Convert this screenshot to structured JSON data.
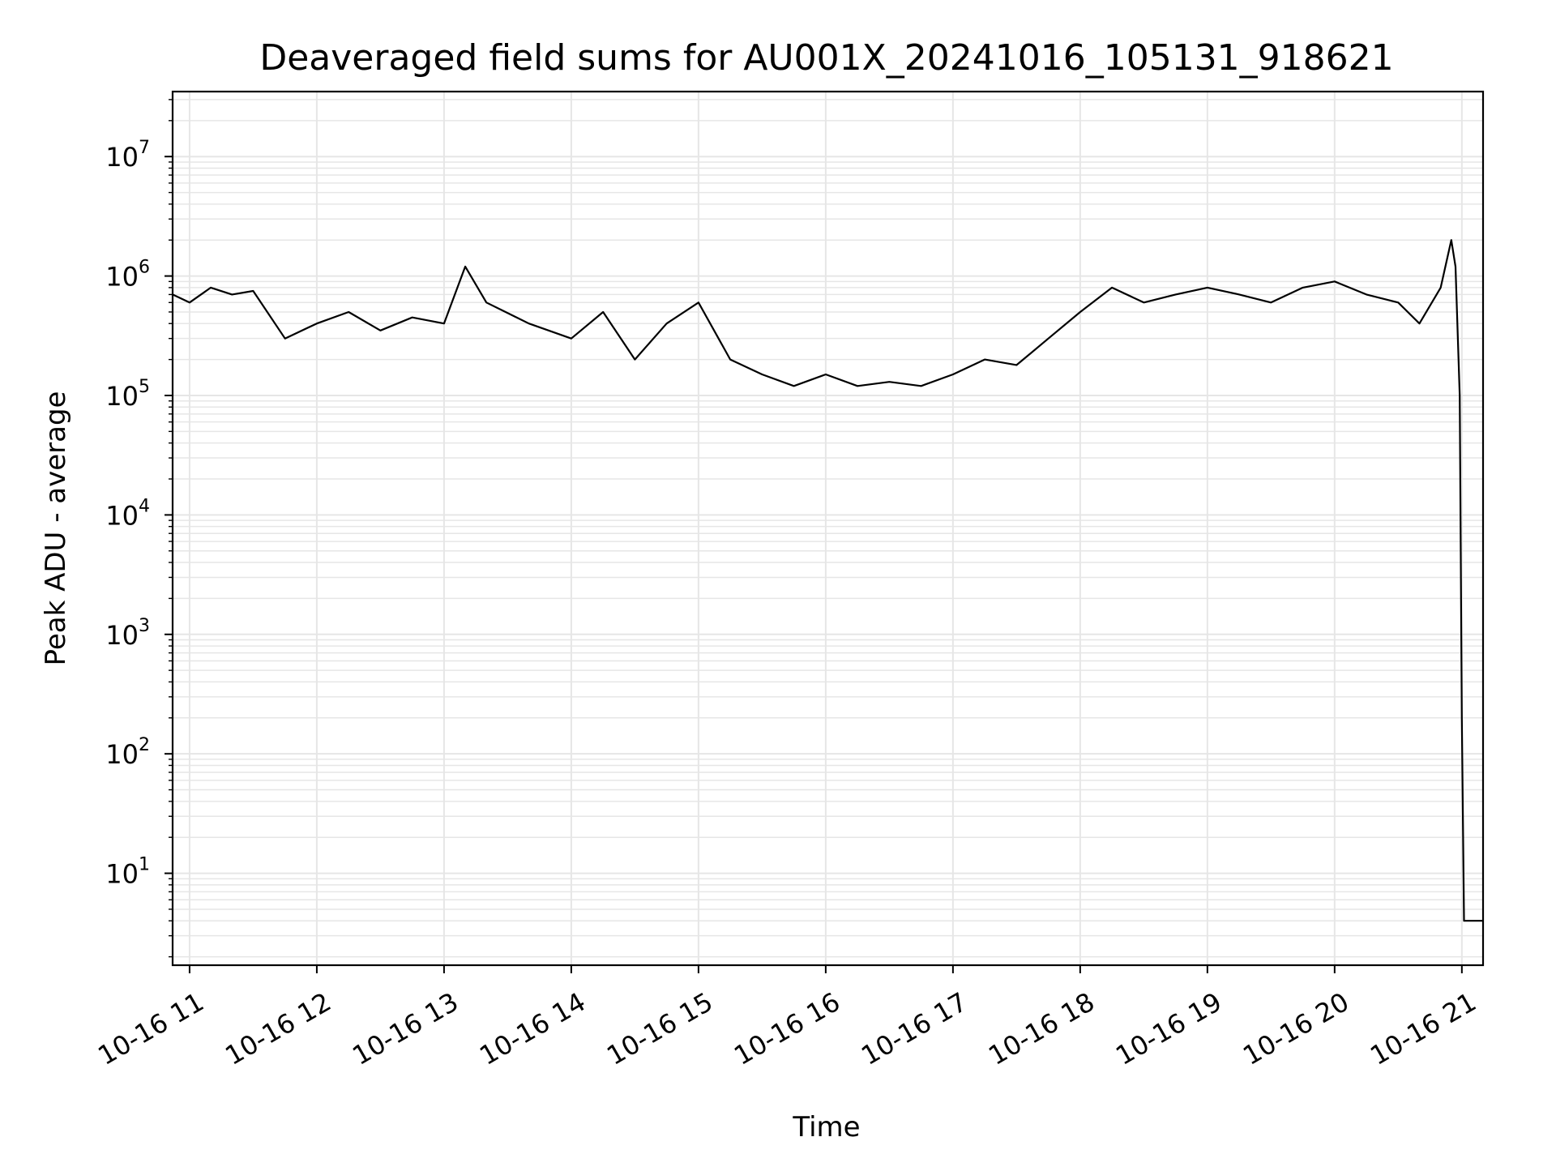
{
  "chart_data": {
    "type": "line",
    "title": "Deaveraged field sums for AU001X_20241016_105131_918621",
    "xlabel": "Time",
    "ylabel": "Peak ADU - average",
    "yscale": "log",
    "ylim": [
      1.7,
      35000000
    ],
    "xlim": [
      "2024-10-16 10:52",
      "2024-10-16 21:10"
    ],
    "grid": true,
    "line_color": "#000000",
    "grid_color": "#e6e6e6",
    "x_tick_labels": [
      "10-16 11",
      "10-16 12",
      "10-16 13",
      "10-16 14",
      "10-16 15",
      "10-16 16",
      "10-16 17",
      "10-16 18",
      "10-16 19",
      "10-16 20",
      "10-16 21"
    ],
    "y_ticks": [
      {
        "base": "10",
        "exp": "1"
      },
      {
        "base": "10",
        "exp": "2"
      },
      {
        "base": "10",
        "exp": "3"
      },
      {
        "base": "10",
        "exp": "4"
      },
      {
        "base": "10",
        "exp": "5"
      },
      {
        "base": "10",
        "exp": "6"
      },
      {
        "base": "10",
        "exp": "7"
      }
    ],
    "series": [
      {
        "x": [
          "2024-10-16 10:52",
          "2024-10-16 11:00",
          "2024-10-16 11:10",
          "2024-10-16 11:20",
          "2024-10-16 11:30",
          "2024-10-16 11:45",
          "2024-10-16 12:00",
          "2024-10-16 12:15",
          "2024-10-16 12:30",
          "2024-10-16 12:45",
          "2024-10-16 13:00",
          "2024-10-16 13:10",
          "2024-10-16 13:20",
          "2024-10-16 13:40",
          "2024-10-16 14:00",
          "2024-10-16 14:15",
          "2024-10-16 14:30",
          "2024-10-16 14:45",
          "2024-10-16 15:00",
          "2024-10-16 15:15",
          "2024-10-16 15:30",
          "2024-10-16 15:45",
          "2024-10-16 16:00",
          "2024-10-16 16:15",
          "2024-10-16 16:30",
          "2024-10-16 16:45",
          "2024-10-16 17:00",
          "2024-10-16 17:15",
          "2024-10-16 17:30",
          "2024-10-16 17:45",
          "2024-10-16 18:00",
          "2024-10-16 18:15",
          "2024-10-16 18:30",
          "2024-10-16 18:45",
          "2024-10-16 19:00",
          "2024-10-16 19:15",
          "2024-10-16 19:30",
          "2024-10-16 19:45",
          "2024-10-16 20:00",
          "2024-10-16 20:15",
          "2024-10-16 20:30",
          "2024-10-16 20:40",
          "2024-10-16 20:50",
          "2024-10-16 20:55",
          "2024-10-16 20:57",
          "2024-10-16 20:59",
          "2024-10-16 21:00",
          "2024-10-16 21:01",
          "2024-10-16 21:10"
        ],
        "y": [
          700000,
          600000,
          800000,
          700000,
          750000,
          300000,
          400000,
          500000,
          350000,
          450000,
          400000,
          1200000,
          600000,
          400000,
          300000,
          500000,
          200000,
          400000,
          600000,
          200000,
          150000,
          120000,
          150000,
          120000,
          130000,
          120000,
          150000,
          200000,
          180000,
          300000,
          500000,
          800000,
          600000,
          700000,
          800000,
          700000,
          600000,
          800000,
          900000,
          700000,
          600000,
          400000,
          800000,
          2000000,
          1200000,
          100000,
          200,
          4,
          4
        ]
      }
    ]
  }
}
